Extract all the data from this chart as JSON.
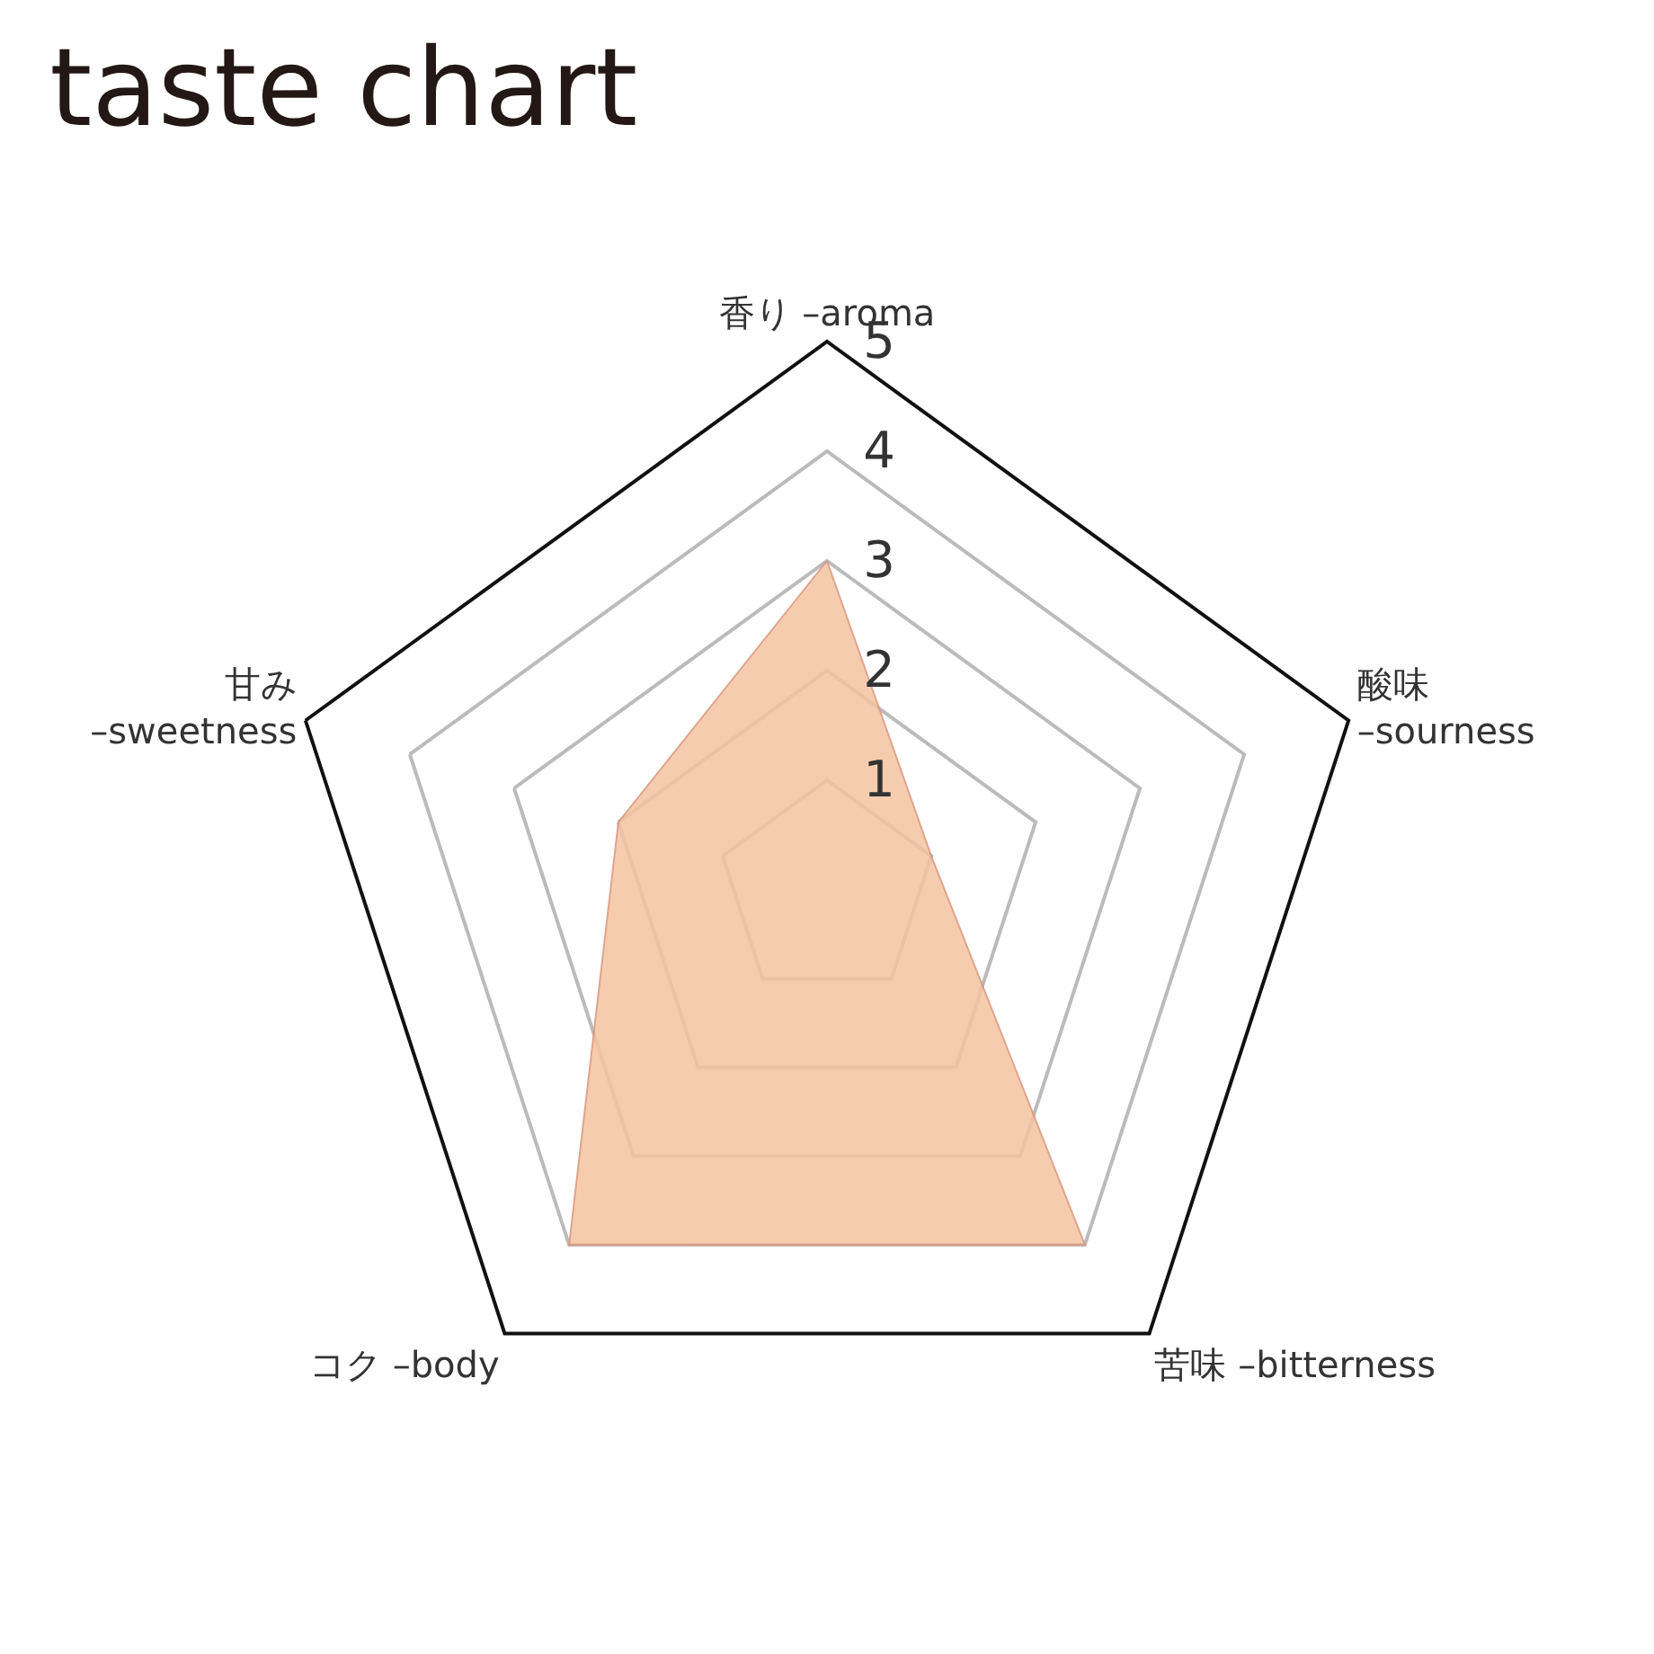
{
  "chart_data": {
    "type": "radar",
    "title": "taste chart",
    "categories": [
      "香り –aroma",
      "酸味\n–sourness",
      "苦味 –bitterness",
      "コク –body",
      "甘み\n–sweetness"
    ],
    "series": [
      {
        "color": "#f5c4a2",
        "values": [
          3,
          1,
          4,
          4,
          2
        ]
      }
    ],
    "ylim": [
      0,
      5
    ],
    "yticks": [
      1,
      2,
      3,
      4,
      5
    ],
    "grid": true,
    "marker": "none"
  }
}
